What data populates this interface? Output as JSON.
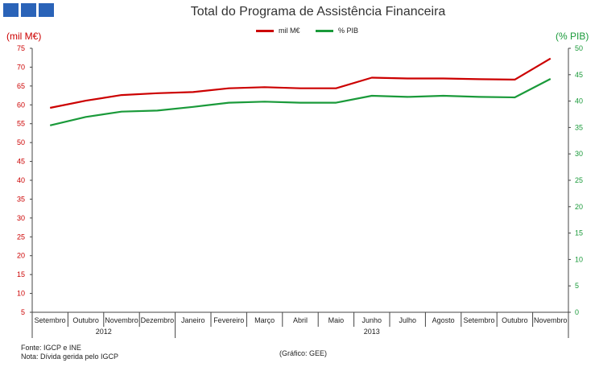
{
  "header": {
    "logo_color": "#2a63b8"
  },
  "chart_data": {
    "type": "line",
    "title": "Total do Programa de Assistência Financeira",
    "ylabel_left": "(mil M€)",
    "ylabel_right": "(% PIB)",
    "ylim_left": [
      5,
      75
    ],
    "yticks_left": [
      5,
      10,
      15,
      20,
      25,
      30,
      35,
      40,
      45,
      50,
      55,
      60,
      65,
      70,
      75
    ],
    "ylim_right": [
      0,
      50
    ],
    "yticks_right": [
      0,
      5,
      10,
      15,
      20,
      25,
      30,
      35,
      40,
      45,
      50
    ],
    "categories": [
      "Setembro",
      "Outubro",
      "Novembro",
      "Dezembro",
      "Janeiro",
      "Fevereiro",
      "Março",
      "Abril",
      "Maio",
      "Junho",
      "Julho",
      "Agosto",
      "Setembro",
      "Outubro",
      "Novembro"
    ],
    "year_groups": [
      {
        "label": "2012",
        "count": 4
      },
      {
        "label": "2013",
        "count": 11
      }
    ],
    "series": [
      {
        "name": "mil M€",
        "axis": "left",
        "color": "#cc0000",
        "values": [
          59.2,
          61.1,
          62.6,
          63.1,
          63.4,
          64.4,
          64.7,
          64.4,
          64.4,
          67.2,
          67.0,
          67.0,
          66.8,
          66.7,
          72.3
        ]
      },
      {
        "name": "% PIB",
        "axis": "right",
        "color": "#1a9a3a",
        "values": [
          35.4,
          37.0,
          38.0,
          38.2,
          38.9,
          39.7,
          39.9,
          39.7,
          39.7,
          41.0,
          40.8,
          41.0,
          40.8,
          40.7,
          44.2
        ]
      }
    ],
    "grid": false,
    "legend_position": "top-center"
  },
  "footer": {
    "source": "Fonte: IGCP e INE",
    "note": "Nota: Dívida gerida pelo IGCP",
    "credit": "(Gráfico: GEE)"
  }
}
